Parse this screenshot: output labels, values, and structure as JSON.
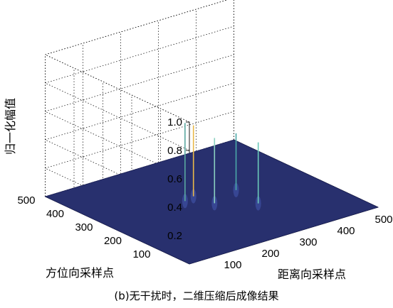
{
  "chart_data": {
    "type": "surface3d",
    "title": "",
    "zlabel": "归一化幅值",
    "xlabel": "距离向采样点",
    "ylabel": "方位向采样点",
    "xlim": [
      0,
      500
    ],
    "ylim": [
      0,
      500
    ],
    "zlim": [
      0,
      1.0
    ],
    "x_ticks": [
      "100",
      "200",
      "300",
      "400",
      "500"
    ],
    "y_ticks": [
      "100",
      "200",
      "300",
      "400",
      "500"
    ],
    "z_ticks": [
      "0.2",
      "0.4",
      "0.6",
      "0.8",
      "1.0"
    ],
    "grid": true,
    "surface_color": "#28306e",
    "peaks": [
      {
        "x": 210,
        "y": 290,
        "value": 0.55,
        "color": "#5aa8a0"
      },
      {
        "x": 240,
        "y": 300,
        "value": 0.5,
        "color": "#e8b84a"
      },
      {
        "x": 250,
        "y": 240,
        "value": 0.46,
        "color": "#8ad0c0"
      },
      {
        "x": 320,
        "y": 180,
        "value": 0.43,
        "color": "#6ac8b8"
      },
      {
        "x": 330,
        "y": 270,
        "value": 0.4,
        "color": "#4aa8a8"
      }
    ]
  },
  "caption": "(b)无干扰时，二维压缩后成像结果"
}
